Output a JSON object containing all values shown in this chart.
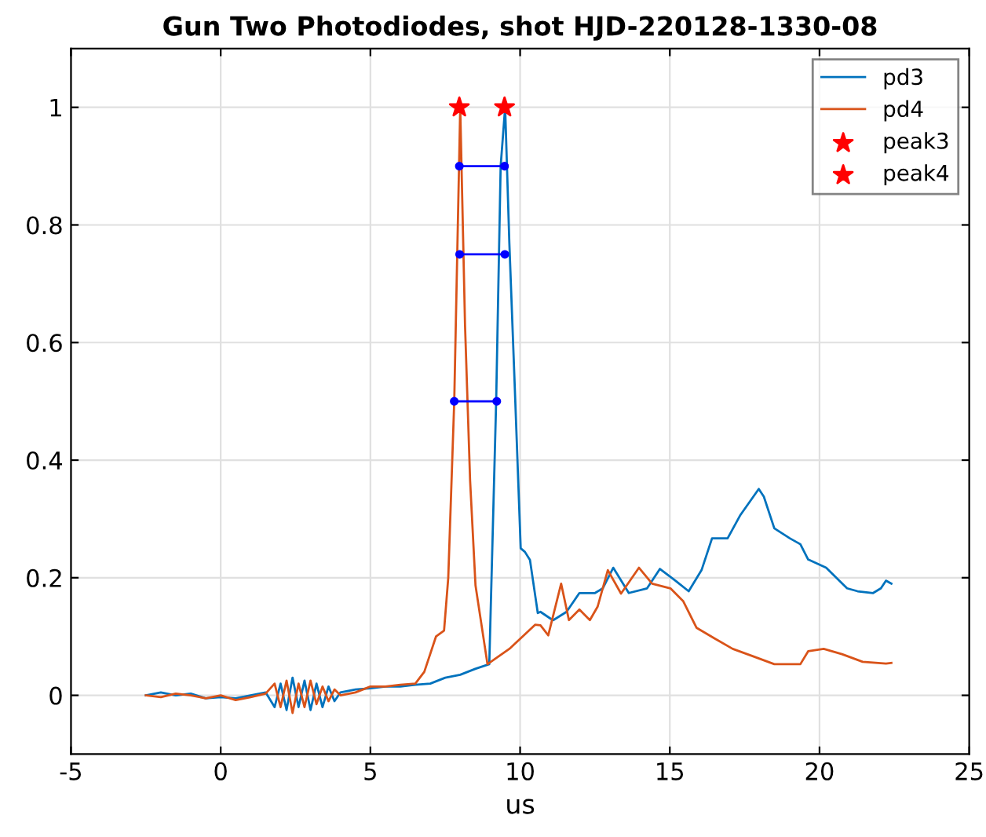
{
  "chart_data": {
    "type": "line",
    "title": "Gun Two Photodiodes, shot HJD-220128-1330-08",
    "xlabel": "us",
    "xlim": [
      -5,
      25
    ],
    "ylim": [
      -0.1,
      1.1
    ],
    "xticks": [
      -5,
      0,
      5,
      10,
      15,
      20,
      25
    ],
    "yticks": [
      0,
      0.2,
      0.4,
      0.6,
      0.8,
      1
    ],
    "grid": true,
    "legend": "top right",
    "series": [
      {
        "name": "pd3",
        "color": "#0072bd",
        "x": [
          -2.5,
          -2.0,
          -1.5,
          -1.0,
          -0.5,
          0.0,
          0.5,
          1.0,
          1.5,
          1.8,
          2.0,
          2.2,
          2.4,
          2.6,
          2.8,
          3.0,
          3.2,
          3.4,
          3.6,
          3.8,
          4.0,
          4.5,
          5.0,
          5.5,
          6.0,
          6.5,
          7.0,
          7.5,
          8.0,
          8.5,
          8.97,
          9.2,
          9.35,
          9.5,
          9.64,
          9.81,
          10.02,
          10.16,
          10.33,
          10.59,
          10.68,
          11.03,
          11.11,
          11.55,
          11.98,
          12.5,
          12.76,
          13.11,
          13.63,
          14.24,
          14.67,
          15.19,
          15.63,
          16.06,
          16.41,
          16.93,
          17.36,
          17.97,
          18.14,
          18.49,
          19.01,
          19.36,
          19.62,
          20.22,
          20.92,
          21.27,
          21.79,
          22.05,
          22.22,
          22.4
        ],
        "values": [
          0.0,
          0.005,
          0.0,
          0.003,
          -0.005,
          -0.003,
          -0.005,
          0.0,
          0.005,
          -0.02,
          0.02,
          -0.025,
          0.03,
          -0.02,
          0.025,
          -0.025,
          0.02,
          -0.02,
          0.015,
          -0.01,
          0.005,
          0.01,
          0.012,
          0.015,
          0.015,
          0.018,
          0.02,
          0.03,
          0.035,
          0.045,
          0.053,
          0.5,
          0.9,
          1.0,
          0.77,
          0.54,
          0.25,
          0.244,
          0.23,
          0.14,
          0.142,
          0.13,
          0.128,
          0.142,
          0.174,
          0.174,
          0.182,
          0.217,
          0.174,
          0.182,
          0.215,
          0.195,
          0.177,
          0.213,
          0.267,
          0.267,
          0.307,
          0.351,
          0.338,
          0.284,
          0.267,
          0.257,
          0.231,
          0.217,
          0.182,
          0.177,
          0.174,
          0.182,
          0.195,
          0.19
        ]
      },
      {
        "name": "pd4",
        "color": "#d95319",
        "x": [
          -2.5,
          -2.0,
          -1.5,
          -1.0,
          -0.5,
          0.0,
          0.5,
          1.0,
          1.5,
          1.8,
          2.0,
          2.2,
          2.4,
          2.6,
          2.8,
          3.0,
          3.2,
          3.4,
          3.6,
          3.8,
          4.0,
          4.5,
          5.0,
          5.5,
          6.0,
          6.5,
          6.8,
          7.19,
          7.46,
          7.6,
          7.8,
          8.0,
          8.16,
          8.33,
          8.51,
          8.91,
          9.64,
          10.5,
          10.68,
          10.94,
          11.37,
          11.63,
          11.98,
          12.33,
          12.59,
          12.93,
          13.37,
          13.97,
          14.41,
          15.02,
          15.45,
          15.89,
          16.49,
          17.1,
          17.8,
          18.49,
          19.36,
          19.62,
          20.14,
          20.75,
          21.44,
          22.22,
          22.4
        ],
        "values": [
          0.0,
          -0.003,
          0.003,
          0.0,
          -0.005,
          0.0,
          -0.008,
          -0.003,
          0.003,
          0.02,
          -0.02,
          0.025,
          -0.03,
          0.02,
          -0.02,
          0.025,
          -0.015,
          0.015,
          -0.01,
          0.01,
          0.0,
          0.005,
          0.015,
          0.015,
          0.018,
          0.02,
          0.04,
          0.1,
          0.11,
          0.2,
          0.5,
          1.0,
          0.63,
          0.365,
          0.187,
          0.053,
          0.079,
          0.12,
          0.119,
          0.102,
          0.19,
          0.128,
          0.146,
          0.128,
          0.151,
          0.213,
          0.173,
          0.217,
          0.19,
          0.182,
          0.16,
          0.115,
          0.097,
          0.079,
          0.066,
          0.053,
          0.053,
          0.075,
          0.079,
          0.07,
          0.057,
          0.054,
          0.055
        ]
      },
      {
        "name": "peak3",
        "type": "scatter",
        "marker": "star",
        "color": "#ff0000",
        "x": [
          9.48
        ],
        "values": [
          1.0
        ]
      },
      {
        "name": "peak4",
        "type": "scatter",
        "marker": "star",
        "color": "#ff0000",
        "x": [
          7.97
        ],
        "values": [
          1.0
        ]
      },
      {
        "color": "#0000ff",
        "marker": "circle",
        "x": [
          7.97,
          9.48
        ],
        "values": [
          0.9,
          0.9
        ]
      },
      {
        "color": "#0000ff",
        "marker": "circle",
        "x": [
          7.98,
          9.49
        ],
        "values": [
          0.75,
          0.75
        ]
      },
      {
        "color": "#0000ff",
        "marker": "circle",
        "x": [
          7.8,
          9.22
        ],
        "values": [
          0.5,
          0.5
        ]
      }
    ]
  }
}
